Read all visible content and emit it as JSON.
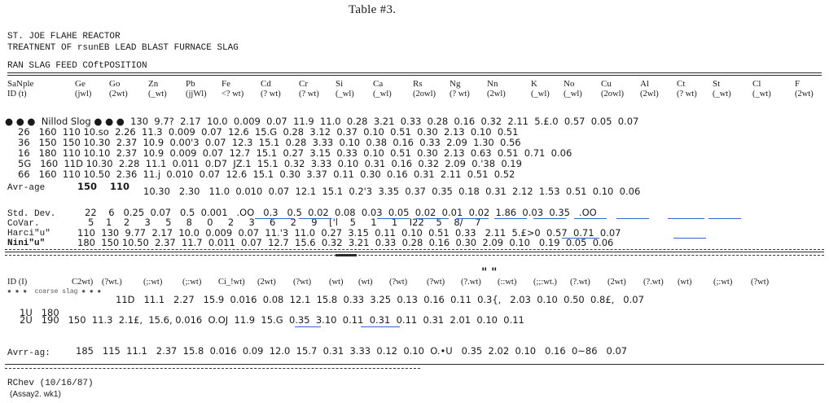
{
  "title": "Table #3.",
  "header": {
    "line1": "ST. JOE FLAHE REACTOR",
    "line2": "TREATNENT OF rsunEB LEAD BLAST FURNACE SLAG",
    "line3": "RAN SLAG FEED COftPOSITION",
    "rule": "=========================================================================================================================="
  },
  "table1": {
    "columns": [
      "SaNple",
      "Ge",
      "Go",
      "Zn",
      "Pb",
      "Fe",
      "Cd",
      "Cr",
      "Si",
      "Ca",
      "Rs",
      "Ng",
      "Nn",
      "K",
      "No",
      "Cu",
      "Al",
      "Ct",
      "St",
      "Cl",
      "F"
    ],
    "units": [
      "ID (t)",
      "(jwl)",
      "(2wt)",
      "(_wt)",
      "(jjWl)",
      "<? wt)",
      "(? wt)",
      "(? wt)",
      "(_wl)",
      "(_wl)",
      "(2owl)",
      "(? wt)",
      "(2wl)",
      "(_wl)",
      "(_wl)",
      "(2owl)",
      "(2wl)",
      "(? wt)",
      "(_wt)",
      "(_wt)",
      "(2wt)"
    ],
    "rows": [
      "● ● ●  Nillod Slog ● ● ●  130  9.7?  2.17  10.0  0.009  0.07  11.9  11.0  0.28  3.21  0.33  0.28  0.16  0.32  2.11  5.£.0  0.57  0.05  0.07",
      "26   160  110 10.so  2.26  11.3  0.009  0.07  12.6  15.G  0.28  3.12  0.37  0.10  0.51  0.30  2.13  0.10  0.51",
      "36   150  150 10.30  2.37  10.9  0.00'3  0.07  12.3  15.1  0.28  3.33  0.10  0.38  0.16  0.33  2.09  1.30  0.56",
      "16   180  110 10.10  2.37  10.9  0.009  0.07  12.7  15.1  0.27  3.15  0.33  0.10  0.51  0.30  2.13  0.63  0.51  0.71  0.06",
      "5G   160  11D 10.30  2.28  11.1  0.011  0.D7  JZ.1  15.1  0.32  3.33  0.10  0.31  0.16  0.32  2.09  0.'38  0.19",
      "66   160  110 10.50  2.36  11.j  0.010  0.07  12.6  15.1  0.30  3.37  0.11  0.30  0.16  0.31  2.11  0.51  0.52"
    ],
    "average_label": "Avr-age",
    "average_ge": "150",
    "average_go": "110",
    "average_rest": "10.30   2.30   11.0  0.010  0.07  12.1  15.1  0.2'3  3.35  0.37  0.35  0.18  0.31  2.12  1.53  0.51  0.10  0.06",
    "stddev_label": "Std. Dev.",
    "stddev": "22    6   0.25  0.07   0.5  0.001   .OO   0.3   0.5  0.02  0.08  0.03  0.05  0.02  0.01  0.02  1.86  0.03  0.35   .OO",
    "covar_label": "CoVar.",
    "covar": "5    1    2     3     5     8     0     2     3     6     2     9    ['l    5     1     1    I22    5    8/    7",
    "max_label": "Harci\"u\"",
    "max": "110  130  9.77  2.17  10.0  0.009  0.07  11.'3  11.0  0.27  3.15  0.11  0.10  0.51  0.33   2.11  5.£>0  0.57  0.71  0.07",
    "min_label": "Nini\"u\"",
    "min": "180  150 10.50  2.37  11.7  0.011  0.07  12.7  15.6  0.32  3.21  0.33  0.28  0.16  0.30  2.09  0.10   0.19  0.05  0.06"
  },
  "table2": {
    "marker": "\" \"",
    "columns": [
      "ID (I)",
      "C2wt)",
      "(?wt.)",
      "(;:wt)",
      "(;:wt)",
      "Ci_!wt)",
      "(2wt)",
      "(?wt)",
      "(wt)",
      "(wt)",
      "(?wt)",
      "(?wt)",
      "(?.wt)",
      "(::wt)",
      "(;;:wt.)",
      "(?.wt)",
      "(2wt)",
      "(?.wt)",
      "(wt)",
      "(;:wt)",
      "(?wt)"
    ],
    "sub_label": "● ● ●  coarse slag ● ● ●",
    "rows": [
      "11D   11.1   2.27   15.9  0.016  0.08  12.1  15.8  0.33  3.25  0.13  0.16  0.11  0.3{,   2.03  0.10  0.50  0.8£,   0.07",
      "1U   180",
      "2U   190   150  11.3  2.1£,  15.6, 0.016  O.OJ  11.9  15.G  0.35  3.10  0.11  0.31  0.11  0.31  2.01  0.10  0.11"
    ],
    "average_label": "Avrr-ag:",
    "average": "185   115  11.1   2.37  15.8  0.016  0.09  12.0  15.7  0.31  3.33  0.12  0.10  O.•U   0.35  2.02  0.10   0.16  0~86   0.07"
  },
  "footer": {
    "author": "RChev (10/16/87)",
    "file": "(Assay2. wk1)"
  }
}
